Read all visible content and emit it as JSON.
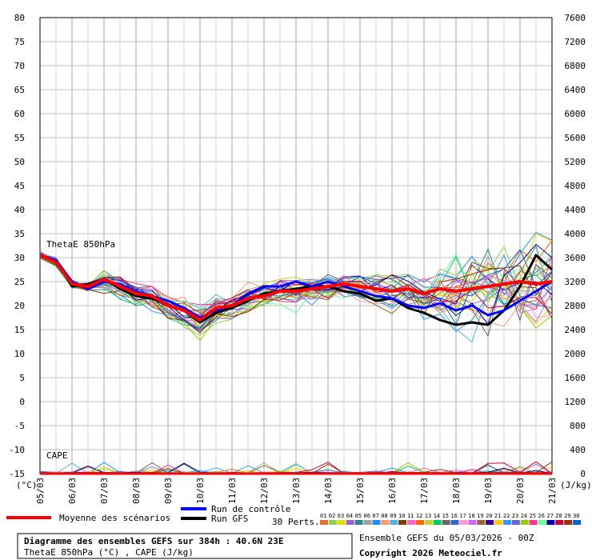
{
  "chart_data": {
    "type": "line",
    "title": "Diagramme des ensembles GEFS sur 384h : 40.6N 23E",
    "subtitle": "ThetaE 850hPa (°C) , CAPE (J/kg)",
    "run_info": "Ensemble GEFS du 05/03/2026 - 00Z",
    "copyright": "Copyright 2026 Meteociel.fr",
    "left_unit": "(°C)",
    "right_unit": "(J/kg)",
    "left_ylim": [
      -15,
      80
    ],
    "right_ylim": [
      0,
      7600
    ],
    "left_ticks": [
      80,
      75,
      70,
      65,
      60,
      55,
      50,
      45,
      40,
      35,
      30,
      25,
      20,
      15,
      10,
      5,
      0,
      -5,
      -10,
      -15
    ],
    "right_ticks": [
      7600,
      7200,
      6800,
      6400,
      6000,
      5600,
      5200,
      4800,
      4400,
      4000,
      3600,
      3200,
      2800,
      2400,
      2000,
      1600,
      1200,
      800,
      400,
      0
    ],
    "dates": [
      "05/03",
      "06/03",
      "07/03",
      "08/03",
      "09/03",
      "10/03",
      "11/03",
      "12/03",
      "13/03",
      "14/03",
      "15/03",
      "16/03",
      "17/03",
      "18/03",
      "19/03",
      "20/03",
      "21/03"
    ],
    "grid": true,
    "label_thetae": "ThetaE 850hPa",
    "label_cape": "CAPE",
    "x": [
      0,
      12,
      24,
      36,
      48,
      60,
      72,
      84,
      96,
      108,
      120,
      132,
      144,
      156,
      168,
      180,
      192,
      204,
      216,
      228,
      240,
      252,
      264,
      276,
      288,
      300,
      312,
      324,
      336,
      348,
      360,
      372,
      384
    ],
    "mean": {
      "name": "Moyenne des scénarios",
      "color": "#ff0000",
      "thetae": [
        30.5,
        29,
        24.5,
        24,
        25.5,
        24,
        22.5,
        22,
        20,
        19,
        17,
        19.5,
        20,
        21.5,
        22,
        23,
        23,
        23.5,
        24,
        24.5,
        24,
        23.5,
        23,
        23.5,
        22.5,
        23.5,
        23,
        23.5,
        24,
        24.5,
        25,
        24.5,
        25
      ]
    },
    "control": {
      "name": "Run de contrôle",
      "color": "#0000ff",
      "thetae": [
        30.5,
        29.5,
        25,
        23.5,
        25,
        24.5,
        23,
        22,
        21,
        19.5,
        17.5,
        19,
        20,
        22.5,
        24,
        24,
        25,
        24,
        25,
        24,
        23,
        22,
        21.5,
        20,
        19.5,
        20.5,
        19,
        20,
        18,
        19,
        21,
        23,
        25
      ]
    },
    "gfs": {
      "name": "Run GFS",
      "color": "#000000",
      "thetae": [
        30.5,
        29.5,
        24,
        24.5,
        25.5,
        23.5,
        22,
        21.5,
        20,
        19,
        16.5,
        18.5,
        19.5,
        21,
        22.5,
        23,
        23.5,
        24,
        24,
        23,
        22.5,
        21,
        21.5,
        19.5,
        18.5,
        17,
        16,
        16.5,
        16,
        19,
        24,
        30.5,
        27.5
      ]
    },
    "perturbations_label": "30 Perts.",
    "perturbation_ids": [
      "01",
      "02",
      "03",
      "04",
      "05",
      "06",
      "07",
      "08",
      "09",
      "10",
      "11",
      "12",
      "13",
      "14",
      "15",
      "16",
      "17",
      "18",
      "19",
      "20",
      "21",
      "22",
      "23",
      "24",
      "25",
      "26",
      "27",
      "28",
      "29",
      "30"
    ],
    "perturbation_colors": [
      "#e8702a",
      "#8fd14f",
      "#e0e000",
      "#9966cc",
      "#2a8a8a",
      "#a0a0a0",
      "#1e90ff",
      "#ff9966",
      "#4db3e6",
      "#804000",
      "#ff66cc",
      "#ff6600",
      "#cccc33",
      "#00cc66",
      "#666666",
      "#3366cc",
      "#ff99cc",
      "#cc66ff",
      "#996633",
      "#330099",
      "#ffcc00",
      "#3399ff",
      "#6666cc",
      "#99cc00",
      "#ff3399",
      "#66ff99",
      "#000099",
      "#cc0033",
      "#993300",
      "#0066cc"
    ]
  }
}
